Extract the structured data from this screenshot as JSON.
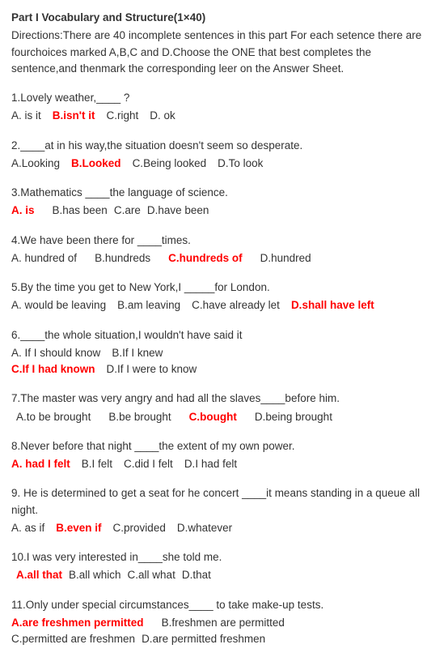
{
  "title": "Part I Vocabulary and Structure(1×40)",
  "directions": "Directions:There are 40 incomplete sentences in this part For each setence there are fourchoices marked A,B,C and D.Choose the ONE that best completes the sentence,and thenmark the corresponding leer on the Answer Sheet.",
  "questions": [
    {
      "q": "1.Lovely weather,____ ?",
      "opts": [
        {
          "t": "A. is it",
          "a": false
        },
        {
          "t": "B.isn't it",
          "a": true
        },
        {
          "t": "C.right",
          "a": false
        },
        {
          "t": "D. ok",
          "a": false
        }
      ]
    },
    {
      "q": "2.____at in his way,the situation doesn't seem so desperate.",
      "opts": [
        {
          "t": "A.Looking",
          "a": false
        },
        {
          "t": "B.Looked",
          "a": true
        },
        {
          "t": "C.Being looked",
          "a": false
        },
        {
          "t": "D.To look",
          "a": false
        }
      ]
    },
    {
      "q": "3.Mathematics ____the language of science.",
      "opts": [
        {
          "t": "A. is",
          "a": true
        },
        {
          "t": "B.has been",
          "a": false
        },
        {
          "t": "C.are",
          "a": false
        },
        {
          "t": "D.have been",
          "a": false
        }
      ],
      "spacing": "wide-first"
    },
    {
      "q": "4.We have been there for ____times.",
      "opts": [
        {
          "t": "A. hundred of",
          "a": false
        },
        {
          "t": "B.hundreds",
          "a": false
        },
        {
          "t": "C.hundreds of",
          "a": true
        },
        {
          "t": "D.hundred",
          "a": false
        }
      ],
      "spacing": "wide"
    },
    {
      "q": "5.By the time you get to New York,I _____for London.",
      "opts": [
        {
          "t": "A. would be leaving",
          "a": false
        },
        {
          "t": "B.am leaving",
          "a": false
        },
        {
          "t": "C.have already let",
          "a": false
        },
        {
          "t": "D.shall have left",
          "a": true
        }
      ]
    },
    {
      "q": "6.____the whole situation,I wouldn't have said it",
      "opts_rows": [
        [
          {
            "t": "A. If I should know",
            "a": false
          },
          {
            "t": "B.If I knew",
            "a": false
          }
        ],
        [
          {
            "t": "C.If I had known",
            "a": true
          },
          {
            "t": "D.If I were to know",
            "a": false
          }
        ]
      ]
    },
    {
      "q": "7.The master was very angry and had all the slaves____before him.",
      "opts": [
        {
          "t": "A.to be brought",
          "a": false
        },
        {
          "t": "B.be brought",
          "a": false
        },
        {
          "t": "C.bought",
          "a": true
        },
        {
          "t": "D.being brought",
          "a": false
        }
      ],
      "indent": true,
      "spacing": "wide"
    },
    {
      "q": "8.Never before that night ____the extent of my own power.",
      "opts": [
        {
          "t": "A. had I felt",
          "a": true
        },
        {
          "t": "B.I felt",
          "a": false
        },
        {
          "t": "C.did I felt",
          "a": false
        },
        {
          "t": "D.I had felt",
          "a": false
        }
      ]
    },
    {
      "q": "9. He is determined to get a seat for he concert ____it means standing in a queue all night.",
      "opts": [
        {
          "t": "A. as if",
          "a": false
        },
        {
          "t": "B.even if",
          "a": true
        },
        {
          "t": "C.provided",
          "a": false
        },
        {
          "t": "D.whatever",
          "a": false
        }
      ],
      "spacing": "mid"
    },
    {
      "q": "10.I was very interested in____she told me.",
      "opts": [
        {
          "t": "A.all that",
          "a": true
        },
        {
          "t": "B.all which",
          "a": false
        },
        {
          "t": "C.all what",
          "a": false
        },
        {
          "t": "D.that",
          "a": false
        }
      ],
      "indent": true,
      "spacing": "tight"
    },
    {
      "q": "11.Only under special circumstances____ to take make-up tests.",
      "opts_rows": [
        [
          {
            "t": "A.are freshmen permitted",
            "a": true
          },
          {
            "t": "B.freshmen are permitted",
            "a": false
          }
        ],
        [
          {
            "t": "C.permitted are freshmen",
            "a": false
          },
          {
            "t": "D.are permitted freshmen",
            "a": false
          }
        ]
      ],
      "row_spacing": "wide-first-tight-second"
    }
  ]
}
